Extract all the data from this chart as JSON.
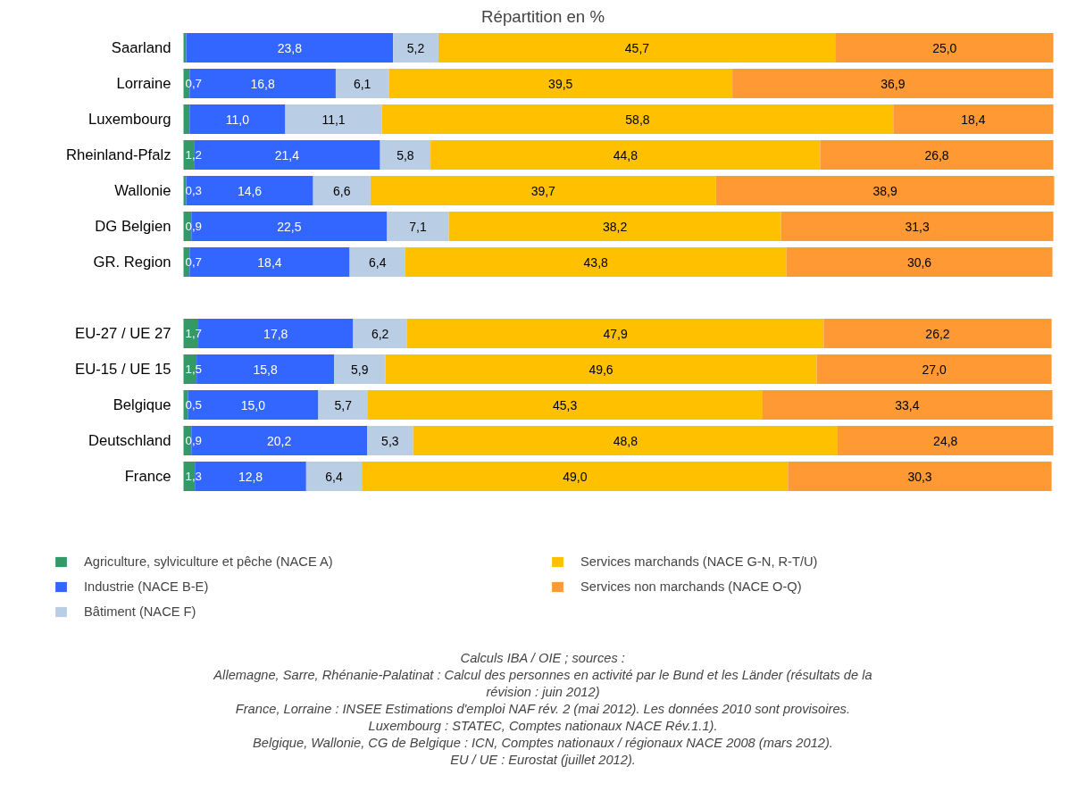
{
  "chart_data": {
    "type": "bar",
    "orientation": "horizontal",
    "stacked": true,
    "title": "Répartition en %",
    "legend": "bottom",
    "grid": false,
    "tick_labels": "y",
    "categories": [
      "Saarland",
      "Lorraine",
      "Luxembourg",
      "Rheinland-Pfalz",
      "Wallonie",
      "DG Belgien",
      "GR. Region",
      null,
      "EU-27 / UE 27",
      "EU-15 / UE 15",
      "Belgique",
      "Deutschland",
      "France"
    ],
    "series": [
      {
        "name": "Agriculture, sylviculture et pêche (NACE A)",
        "color": "#339966",
        "values": [
          0.3,
          0.7,
          0.7,
          1.2,
          0.3,
          0.9,
          0.7,
          null,
          1.7,
          1.5,
          0.5,
          0.9,
          1.3
        ],
        "value_labels": [
          null,
          "0,7",
          null,
          "1,2",
          "0,3",
          "0,9",
          "0,7",
          null,
          "1,7",
          "1,5",
          "0,5",
          "0,9",
          "1,3"
        ]
      },
      {
        "name": "Industrie (NACE B-E)",
        "color": "#3366ff",
        "values": [
          23.8,
          16.8,
          11.0,
          21.4,
          14.6,
          22.5,
          18.4,
          null,
          17.8,
          15.8,
          15.0,
          20.2,
          12.8
        ],
        "value_labels": [
          "23,8",
          "16,8",
          "11,0",
          "21,4",
          "14,6",
          "22,5",
          "18,4",
          null,
          "17,8",
          "15,8",
          "15,0",
          "20,2",
          "12,8"
        ]
      },
      {
        "name": "Bâtiment (NACE F)",
        "color": "#b9cde5",
        "values": [
          5.2,
          6.1,
          11.1,
          5.8,
          6.6,
          7.1,
          6.4,
          null,
          6.2,
          5.9,
          5.7,
          5.3,
          6.4
        ],
        "value_labels": [
          "5,2",
          "6,1",
          "11,1",
          "5,8",
          "6,6",
          "7,1",
          "6,4",
          null,
          "6,2",
          "5,9",
          "5,7",
          "5,3",
          "6,4"
        ]
      },
      {
        "name": "Services marchands (NACE G-N, R-T/U)",
        "color": "#ffc000",
        "values": [
          45.7,
          39.5,
          58.8,
          44.8,
          39.7,
          38.2,
          43.8,
          null,
          47.9,
          49.6,
          45.3,
          48.8,
          49.0
        ],
        "value_labels": [
          "45,7",
          "39,5",
          "58,8",
          "44,8",
          "39,7",
          "38,2",
          "43,8",
          null,
          "47,9",
          "49,6",
          "45,3",
          "48,8",
          "49,0"
        ]
      },
      {
        "name": "Services non marchands (NACE O-Q)",
        "color": "#ff9933",
        "values": [
          25.0,
          36.9,
          18.4,
          26.8,
          38.9,
          31.3,
          30.6,
          null,
          26.2,
          27.0,
          33.4,
          24.8,
          30.3
        ],
        "value_labels": [
          "25,0",
          "36,9",
          "18,4",
          "26,8",
          "38,9",
          "31,3",
          "30,6",
          null,
          "26,2",
          "27,0",
          "33,4",
          "24,8",
          "30,3"
        ]
      }
    ],
    "annotations": [
      "Calculs IBA / OIE ; sources :",
      "Allemagne, Sarre, Rhénanie-Palatinat : Calcul des personnes en activité par le Bund et les Länder (résultats de la révision : juin 2012)",
      "France, Lorraine : INSEE Estimations d'emploi NAF rév. 2 (mai 2012). Les données 2010 sont provisoires.",
      "Luxembourg : STATEC, Comptes nationaux NACE Rév.1.1).",
      "Belgique, Wallonie, CG de Belgique : ICN, Comptes nationaux / régionaux NACE 2008 (mars 2012).",
      "EU / UE : Eurostat (juillet 2012)."
    ]
  }
}
